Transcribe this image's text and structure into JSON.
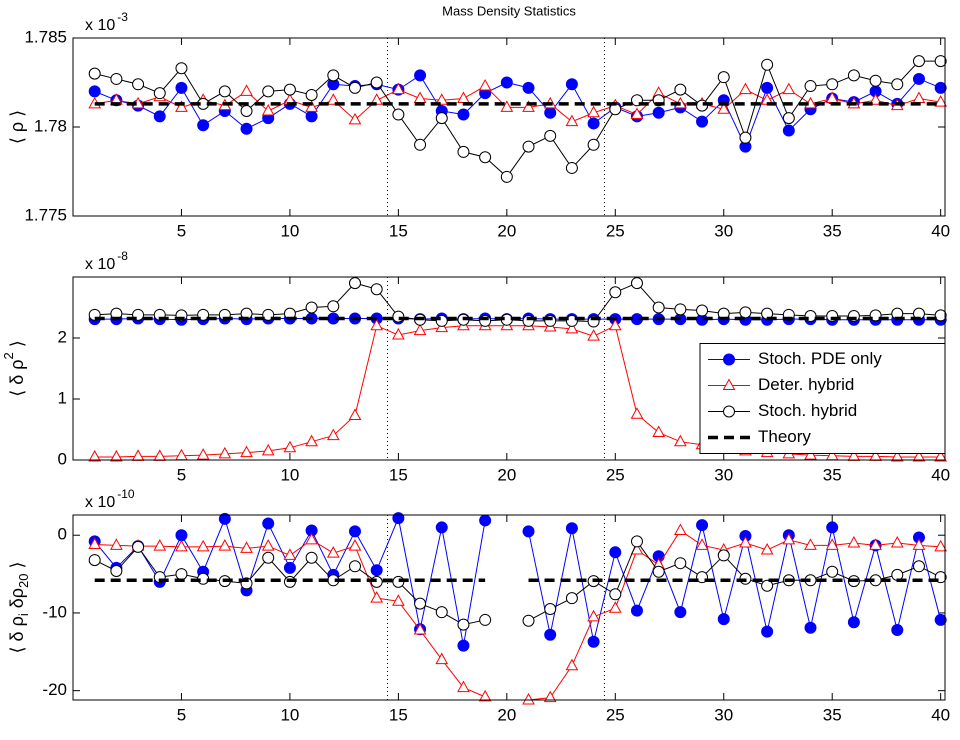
{
  "chart_data": [
    {
      "type": "line",
      "title": "Mass Density Statistics",
      "ylabel": [
        {
          "text": "⟨ ρ ⟩",
          "shift": "base"
        }
      ],
      "y_multiplier": "x 10",
      "y_exponent": "-3",
      "x": [
        1,
        2,
        3,
        4,
        5,
        6,
        7,
        8,
        9,
        10,
        11,
        12,
        13,
        14,
        15,
        16,
        17,
        18,
        19,
        20,
        21,
        22,
        23,
        24,
        25,
        26,
        27,
        28,
        29,
        30,
        31,
        32,
        33,
        34,
        35,
        36,
        37,
        38,
        39,
        40
      ],
      "xlim": [
        0,
        40.2
      ],
      "xticks": [
        5,
        10,
        15,
        20,
        25,
        30,
        35,
        40
      ],
      "ylim": [
        1.775,
        1.785
      ],
      "yticks": [
        1.775,
        1.78,
        1.785
      ],
      "vlines": [
        14.5,
        24.5
      ],
      "series": [
        {
          "color": "#0000ff",
          "marker": "filled-circle",
          "linestyle": "solid",
          "values": [
            1.782,
            1.7815,
            1.7812,
            1.7806,
            1.7822,
            1.7801,
            1.7809,
            1.7799,
            1.7805,
            1.7813,
            1.7806,
            1.7824,
            1.7823,
            1.7824,
            1.7821,
            1.7829,
            1.7809,
            1.7807,
            1.7819,
            1.7825,
            1.7822,
            1.7808,
            1.7824,
            1.7802,
            1.7811,
            1.7806,
            1.7808,
            1.7811,
            1.7803,
            1.7815,
            1.7789,
            1.7822,
            1.7798,
            1.781,
            1.7816,
            1.7814,
            1.782,
            1.7813,
            1.7827,
            1.7822
          ]
        },
        {
          "color": "#ff0000",
          "marker": "triangle",
          "linestyle": "solid",
          "values": [
            1.7813,
            1.7815,
            1.7813,
            1.7817,
            1.7811,
            1.7815,
            1.7812,
            1.782,
            1.7809,
            1.7815,
            1.7811,
            1.7815,
            1.7804,
            1.7815,
            1.7821,
            1.7816,
            1.7815,
            1.7816,
            1.7823,
            1.7811,
            1.7811,
            1.7813,
            1.7803,
            1.7808,
            1.7812,
            1.7807,
            1.7819,
            1.7813,
            1.7813,
            1.781,
            1.7821,
            1.7815,
            1.7821,
            1.7813,
            1.7816,
            1.7813,
            1.7815,
            1.7812,
            1.7816,
            1.7814
          ]
        },
        {
          "color": "#000000",
          "marker": "circle",
          "linestyle": "solid",
          "values": [
            1.783,
            1.7827,
            1.7824,
            1.7819,
            1.7833,
            1.7813,
            1.782,
            1.7809,
            1.782,
            1.7821,
            1.7818,
            1.7829,
            1.7822,
            1.7825,
            1.7807,
            1.779,
            1.7805,
            1.7786,
            1.7783,
            1.7772,
            1.7789,
            1.7795,
            1.7777,
            1.779,
            1.781,
            1.7815,
            1.7815,
            1.7821,
            1.7812,
            1.7828,
            1.7794,
            1.7835,
            1.7805,
            1.7823,
            1.7824,
            1.7829,
            1.7826,
            1.7824,
            1.7837,
            1.7837
          ]
        },
        {
          "color": "#000000",
          "marker": "none",
          "linestyle": "dashed",
          "values": [
            1.7813,
            1.7813,
            1.7813,
            1.7813,
            1.7813,
            1.7813,
            1.7813,
            1.7813,
            1.7813,
            1.7813,
            1.7813,
            1.7813,
            1.7813,
            1.7813,
            1.7813,
            1.7813,
            1.7813,
            1.7813,
            1.7813,
            1.7813,
            1.7813,
            1.7813,
            1.7813,
            1.7813,
            1.7813,
            1.7813,
            1.7813,
            1.7813,
            1.7813,
            1.7813,
            1.7813,
            1.7813,
            1.7813,
            1.7813,
            1.7813,
            1.7813,
            1.7813,
            1.7813,
            1.7813,
            1.7813
          ]
        }
      ]
    },
    {
      "type": "line",
      "ylabel": [
        {
          "text": "⟨ δ ρ",
          "shift": "base"
        },
        {
          "text": "2",
          "shift": "super"
        },
        {
          "text": " ⟩",
          "shift": "base"
        }
      ],
      "y_multiplier": "x 10",
      "y_exponent": "-8",
      "x": [
        1,
        2,
        3,
        4,
        5,
        6,
        7,
        8,
        9,
        10,
        11,
        12,
        13,
        14,
        15,
        16,
        17,
        18,
        19,
        20,
        21,
        22,
        23,
        24,
        25,
        26,
        27,
        28,
        29,
        30,
        31,
        32,
        33,
        34,
        35,
        36,
        37,
        38,
        39,
        40
      ],
      "xlim": [
        0,
        40.2
      ],
      "xticks": [
        5,
        10,
        15,
        20,
        25,
        30,
        35,
        40
      ],
      "ylim": [
        0,
        3
      ],
      "yticks": [
        0,
        1,
        2
      ],
      "vlines": [
        14.5,
        24.5
      ],
      "legend": "right",
      "series": [
        {
          "name": "Stoch. PDE only",
          "color": "#0000ff",
          "marker": "filled-circle",
          "linestyle": "solid",
          "values": [
            2.31,
            2.31,
            2.32,
            2.31,
            2.3,
            2.31,
            2.32,
            2.31,
            2.32,
            2.32,
            2.32,
            2.32,
            2.32,
            2.32,
            2.32,
            2.31,
            2.32,
            2.31,
            2.32,
            2.31,
            2.32,
            2.31,
            2.31,
            2.31,
            2.31,
            2.31,
            2.31,
            2.31,
            2.3,
            2.31,
            2.3,
            2.3,
            2.31,
            2.31,
            2.3,
            2.3,
            2.3,
            2.3,
            2.3,
            2.3
          ]
        },
        {
          "name": "Deter. hybrid",
          "color": "#ff0000",
          "marker": "triangle",
          "linestyle": "solid",
          "values": [
            0.05,
            0.05,
            0.06,
            0.06,
            0.07,
            0.08,
            0.1,
            0.12,
            0.15,
            0.2,
            0.3,
            0.4,
            0.73,
            2.2,
            2.05,
            2.12,
            2.17,
            2.2,
            2.2,
            2.2,
            2.2,
            2.18,
            2.15,
            2.03,
            2.2,
            0.75,
            0.45,
            0.3,
            0.25,
            0.2,
            0.15,
            0.12,
            0.1,
            0.08,
            0.07,
            0.06,
            0.06,
            0.05,
            0.05,
            0.05
          ]
        },
        {
          "name": "Stoch. hybrid",
          "color": "#000000",
          "marker": "circle",
          "linestyle": "solid",
          "values": [
            2.38,
            2.4,
            2.38,
            2.38,
            2.37,
            2.38,
            2.38,
            2.4,
            2.38,
            2.4,
            2.5,
            2.52,
            2.9,
            2.8,
            2.35,
            2.3,
            2.28,
            2.3,
            2.28,
            2.3,
            2.28,
            2.28,
            2.28,
            2.27,
            2.75,
            2.9,
            2.5,
            2.47,
            2.45,
            2.4,
            2.42,
            2.4,
            2.38,
            2.36,
            2.36,
            2.36,
            2.37,
            2.4,
            2.4,
            2.37
          ]
        },
        {
          "name": "Theory",
          "color": "#000000",
          "marker": "none",
          "linestyle": "dashed",
          "values": [
            2.32,
            2.32,
            2.32,
            2.32,
            2.32,
            2.32,
            2.32,
            2.32,
            2.32,
            2.32,
            2.32,
            2.32,
            2.32,
            2.32,
            2.32,
            2.32,
            2.32,
            2.32,
            2.32,
            2.32,
            2.32,
            2.32,
            2.32,
            2.32,
            2.32,
            2.32,
            2.32,
            2.32,
            2.32,
            2.32,
            2.32,
            2.32,
            2.32,
            2.32,
            2.32,
            2.32,
            2.32,
            2.32,
            2.32,
            2.32
          ]
        }
      ]
    },
    {
      "type": "line",
      "ylabel": [
        {
          "text": "⟨ δ ρ",
          "shift": "base"
        },
        {
          "text": "i",
          "shift": "sub"
        },
        {
          "text": " δρ",
          "shift": "base"
        },
        {
          "text": "20",
          "shift": "sub"
        },
        {
          "text": " ⟩",
          "shift": "base"
        }
      ],
      "y_multiplier": "x 10",
      "y_exponent": "-10",
      "x": [
        1,
        2,
        3,
        4,
        5,
        6,
        7,
        8,
        9,
        10,
        11,
        12,
        13,
        14,
        15,
        16,
        17,
        18,
        19,
        20,
        21,
        22,
        23,
        24,
        25,
        26,
        27,
        28,
        29,
        30,
        31,
        32,
        33,
        34,
        35,
        36,
        37,
        38,
        39,
        40
      ],
      "xlim": [
        0,
        40.2
      ],
      "xticks": [
        5,
        10,
        15,
        20,
        25,
        30,
        35,
        40
      ],
      "ylim": [
        -21.2,
        2.6
      ],
      "yticks": [
        -20,
        -10,
        0
      ],
      "vlines": [
        14.5,
        24.5
      ],
      "series": [
        {
          "color": "#0000ff",
          "marker": "filled-circle",
          "linestyle": "solid",
          "values": [
            -0.8,
            -4.2,
            -1.4,
            -6,
            0,
            -4.7,
            2.1,
            -7.1,
            1.5,
            -4.2,
            0.6,
            -5.1,
            0.5,
            -4.5,
            2.2,
            -12.1,
            1,
            -14.2,
            1.9,
            null,
            0.5,
            -12.8,
            0.9,
            -13.7,
            -2.2,
            -9.7,
            -2.7,
            -9.9,
            1.3,
            -10.8,
            -0.1,
            -12.4,
            0,
            -11.9,
            1,
            -11.2,
            -1.3,
            -12.2,
            -0.3,
            -10.9
          ]
        },
        {
          "color": "#ff0000",
          "marker": "triangle",
          "linestyle": "solid",
          "values": [
            -1.2,
            -1.3,
            -1.4,
            -1.4,
            -1.5,
            -1.5,
            -1.4,
            -1.7,
            -1.4,
            -2.6,
            -0.6,
            -2.3,
            -1.4,
            -8.1,
            -8.5,
            -12.2,
            -16,
            -19.6,
            -20.8,
            null,
            -21.2,
            -20.9,
            -16.8,
            -10.5,
            -9.4,
            -1.9,
            -3.8,
            0.6,
            -1.3,
            -1.9,
            -1,
            -1.9,
            -0.6,
            -1.3,
            -1.3,
            -1,
            -1.3,
            -1,
            -1.3,
            -1.5
          ]
        },
        {
          "color": "#000000",
          "marker": "circle",
          "linestyle": "solid",
          "values": [
            -3.2,
            -4.6,
            -1.5,
            -5.4,
            -5,
            -5.6,
            -5.9,
            -6.2,
            -2.9,
            -6,
            -2.9,
            -5.8,
            -4,
            -6,
            -6,
            -8.8,
            -9.9,
            -11.5,
            -10.9,
            null,
            -11,
            -9.5,
            -8.1,
            -5.9,
            -7.6,
            -0.8,
            -4.7,
            -3.6,
            -5.4,
            -2.6,
            -5.6,
            -6.5,
            -5.8,
            -5.8,
            -4.7,
            -5.9,
            -5.8,
            -5.1,
            -4,
            -5.4
          ]
        },
        {
          "color": "#000000",
          "marker": "none",
          "linestyle": "dashed",
          "values": [
            -5.8,
            -5.8,
            -5.8,
            -5.8,
            -5.8,
            -5.8,
            -5.8,
            -5.8,
            -5.8,
            -5.8,
            -5.8,
            -5.8,
            -5.8,
            -5.8,
            -5.8,
            -5.8,
            -5.8,
            -5.8,
            -5.8,
            null,
            -5.8,
            -5.8,
            -5.8,
            -5.8,
            -5.8,
            -5.8,
            -5.8,
            -5.8,
            -5.8,
            -5.8,
            -5.8,
            -5.8,
            -5.8,
            -5.8,
            -5.8,
            -5.8,
            -5.8,
            -5.8,
            -5.8,
            -5.8
          ]
        }
      ]
    }
  ]
}
